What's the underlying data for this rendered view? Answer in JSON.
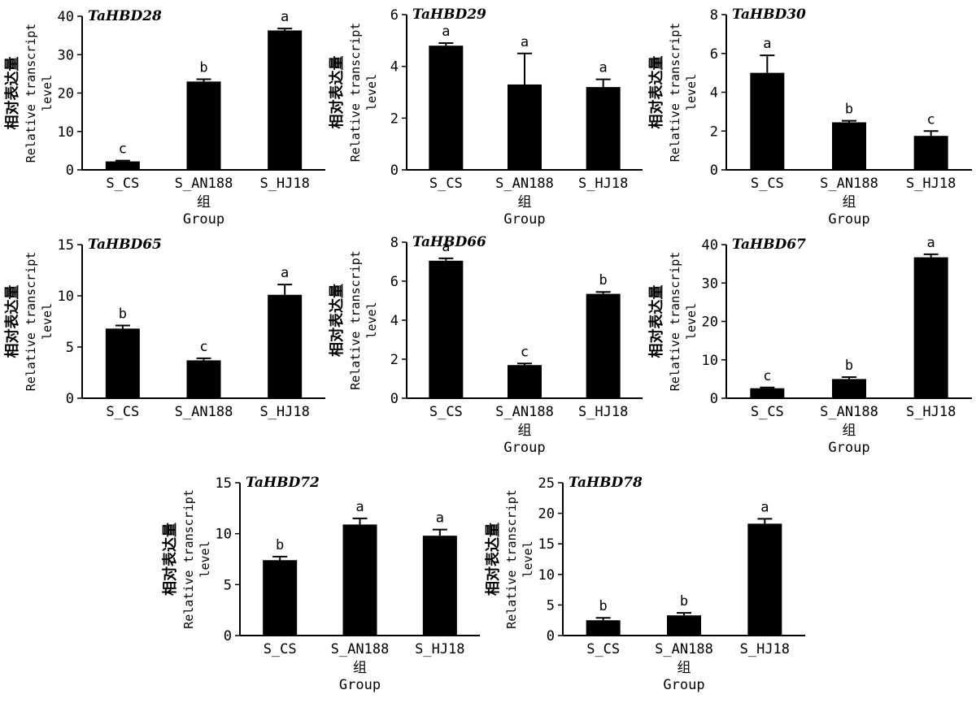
{
  "chart_data": [
    {
      "type": "bar",
      "title": "TaHBD28",
      "ylabel_cn": "相对表达量",
      "ylabel_en": [
        "Relative transcript",
        "level"
      ],
      "xlabel_cn": "组",
      "xlabel_en": "Group",
      "ylim": [
        0,
        40
      ],
      "yticks": [
        0,
        10,
        20,
        30,
        40
      ],
      "categories": [
        "S_CS",
        "S_AN188",
        "S_HJ18"
      ],
      "values": [
        2.2,
        23.0,
        36.3
      ],
      "errors": [
        0.2,
        0.6,
        0.5
      ],
      "significance": [
        "c",
        "b",
        "a"
      ]
    },
    {
      "type": "bar",
      "title": "TaHBD29",
      "ylabel_cn": "相对表达量",
      "ylabel_en": [
        "Relative transcript",
        "level"
      ],
      "xlabel_cn": "组",
      "xlabel_en": "Group",
      "ylim": [
        0,
        6
      ],
      "yticks": [
        0,
        2,
        4,
        6
      ],
      "categories": [
        "S_CS",
        "S_AN188",
        "S_HJ18"
      ],
      "values": [
        4.8,
        3.3,
        3.2
      ],
      "errors": [
        0.1,
        1.2,
        0.3
      ],
      "significance": [
        "a",
        "a",
        "a"
      ]
    },
    {
      "type": "bar",
      "title": "TaHBD30",
      "ylabel_cn": "相对表达量",
      "ylabel_en": [
        "Relative transcript",
        "level"
      ],
      "xlabel_cn": "组",
      "xlabel_en": "Group",
      "ylim": [
        0,
        8
      ],
      "yticks": [
        0,
        2,
        4,
        6,
        8
      ],
      "categories": [
        "S_CS",
        "S_AN188",
        "S_HJ18"
      ],
      "values": [
        5.0,
        2.45,
        1.75
      ],
      "errors": [
        0.9,
        0.08,
        0.25
      ],
      "significance": [
        "a",
        "b",
        "c"
      ]
    },
    {
      "type": "bar",
      "title": "TaHBD65",
      "ylabel_cn": "相对表达量",
      "ylabel_en": [
        "Relative transcript",
        "level"
      ],
      "xlabel_cn": "",
      "xlabel_en": "",
      "ylim": [
        0,
        15
      ],
      "yticks": [
        0,
        5,
        10,
        15
      ],
      "categories": [
        "S_CS",
        "S_AN188",
        "S_HJ18"
      ],
      "values": [
        6.8,
        3.7,
        10.1
      ],
      "errors": [
        0.3,
        0.2,
        1.0
      ],
      "significance": [
        "b",
        "c",
        "a"
      ]
    },
    {
      "type": "bar",
      "title": "TaHBD66",
      "ylabel_cn": "相对表达量",
      "ylabel_en": [
        "Relative transcript",
        "level"
      ],
      "xlabel_cn": "组",
      "xlabel_en": "Group",
      "ylim": [
        0,
        8
      ],
      "yticks": [
        0,
        2,
        4,
        6,
        8
      ],
      "categories": [
        "S_CS",
        "S_AN188",
        "S_HJ18"
      ],
      "values": [
        7.05,
        1.7,
        5.35
      ],
      "errors": [
        0.12,
        0.08,
        0.1
      ],
      "significance": [
        "a",
        "c",
        "b"
      ]
    },
    {
      "type": "bar",
      "title": "TaHBD67",
      "ylabel_cn": "相对表达量",
      "ylabel_en": [
        "Relative transcript",
        "level"
      ],
      "xlabel_cn": "组",
      "xlabel_en": "Group",
      "ylim": [
        0,
        40
      ],
      "yticks": [
        0,
        10,
        20,
        30,
        40
      ],
      "categories": [
        "S_CS",
        "S_AN188",
        "S_HJ18"
      ],
      "values": [
        2.6,
        5.0,
        36.7
      ],
      "errors": [
        0.2,
        0.5,
        0.8
      ],
      "significance": [
        "c",
        "b",
        "a"
      ]
    },
    {
      "type": "bar",
      "title": "TaHBD72",
      "ylabel_cn": "相对表达量",
      "ylabel_en": [
        "Relative transcript",
        "level"
      ],
      "xlabel_cn": "组",
      "xlabel_en": "Group",
      "ylim": [
        0,
        15
      ],
      "yticks": [
        0,
        5,
        10,
        15
      ],
      "categories": [
        "S_CS",
        "S_AN188",
        "S_HJ18"
      ],
      "values": [
        7.4,
        10.9,
        9.8
      ],
      "errors": [
        0.35,
        0.6,
        0.6
      ],
      "significance": [
        "b",
        "a",
        "a"
      ]
    },
    {
      "type": "bar",
      "title": "TaHBD78",
      "ylabel_cn": "相对表达量",
      "ylabel_en": [
        "Relative transcript",
        "level"
      ],
      "xlabel_cn": "组",
      "xlabel_en": "Group",
      "ylim": [
        0,
        25
      ],
      "yticks": [
        0,
        5,
        10,
        15,
        20,
        25
      ],
      "categories": [
        "S_CS",
        "S_AN188",
        "S_HJ18"
      ],
      "values": [
        2.5,
        3.3,
        18.3
      ],
      "errors": [
        0.4,
        0.4,
        0.8
      ],
      "significance": [
        "b",
        "b",
        "a"
      ]
    }
  ]
}
